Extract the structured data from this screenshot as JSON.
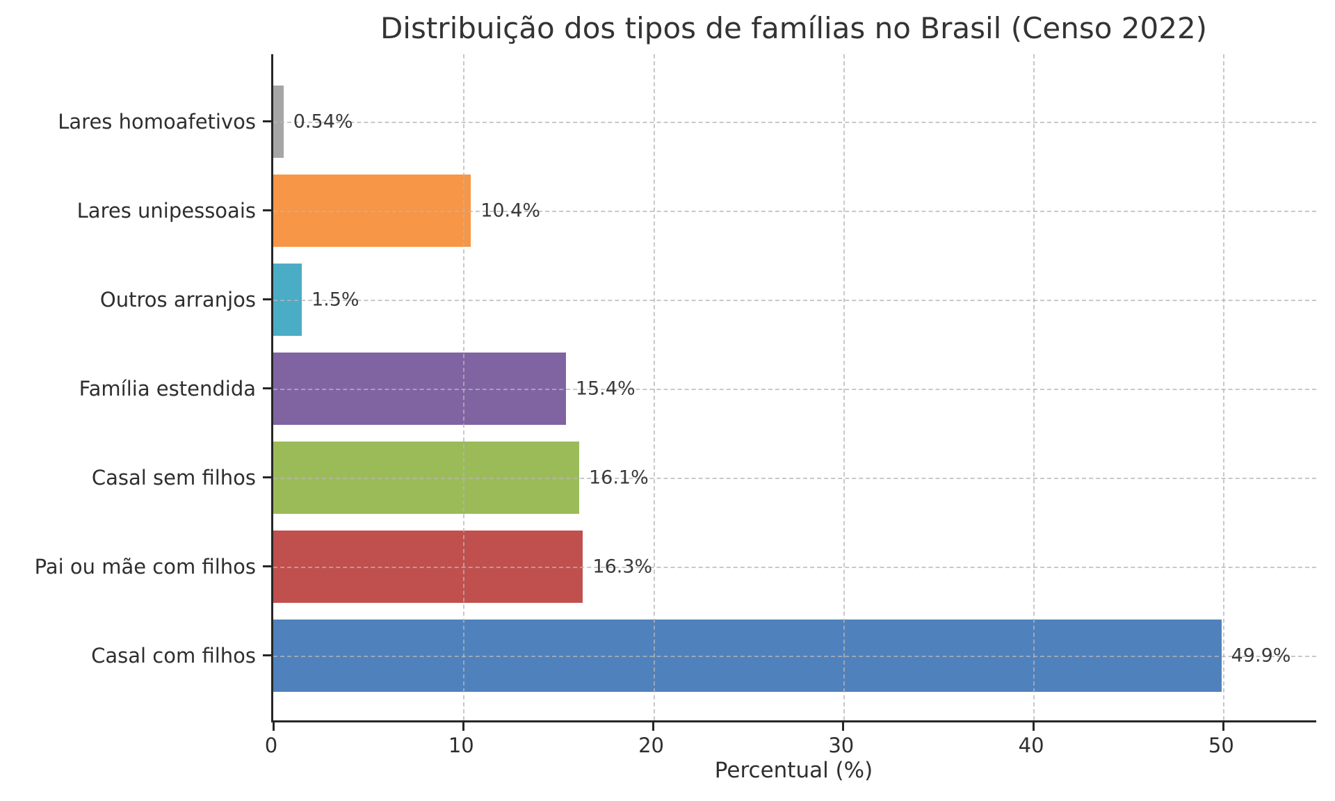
{
  "figure": {
    "background": "#ffffff"
  },
  "chart_data": {
    "type": "bar",
    "orientation": "horizontal",
    "title": "Distribuição dos tipos de famílias no Brasil (Censo 2022)",
    "xlabel": "Percentual (%)",
    "ylabel": "",
    "xlim": [
      0,
      55
    ],
    "xticks": [
      0,
      10,
      20,
      30,
      40,
      50
    ],
    "grid": true,
    "grid_style": "dashed",
    "legend": false,
    "categories_top_to_bottom": [
      "Lares homoafetivos",
      "Lares unipessoais",
      "Outros arranjos",
      "Família estendida",
      "Casal sem filhos",
      "Pai ou mãe com filhos",
      "Casal com filhos"
    ],
    "values": [
      0.54,
      10.4,
      1.5,
      15.4,
      16.1,
      16.3,
      49.9
    ],
    "value_labels": [
      "0.54%",
      "10.4%",
      "1.5%",
      "15.4%",
      "16.1%",
      "16.3%",
      "49.9%"
    ],
    "bar_colors": [
      "#a6a6a6",
      "#f79646",
      "#4bacc6",
      "#8064a2",
      "#9bbb59",
      "#c0504d",
      "#4f81bd"
    ]
  },
  "style": {
    "axis_color": "#262626",
    "text_color": "#2e2e2e",
    "title_color": "#333333",
    "grid_color": "#b6b6b6"
  }
}
